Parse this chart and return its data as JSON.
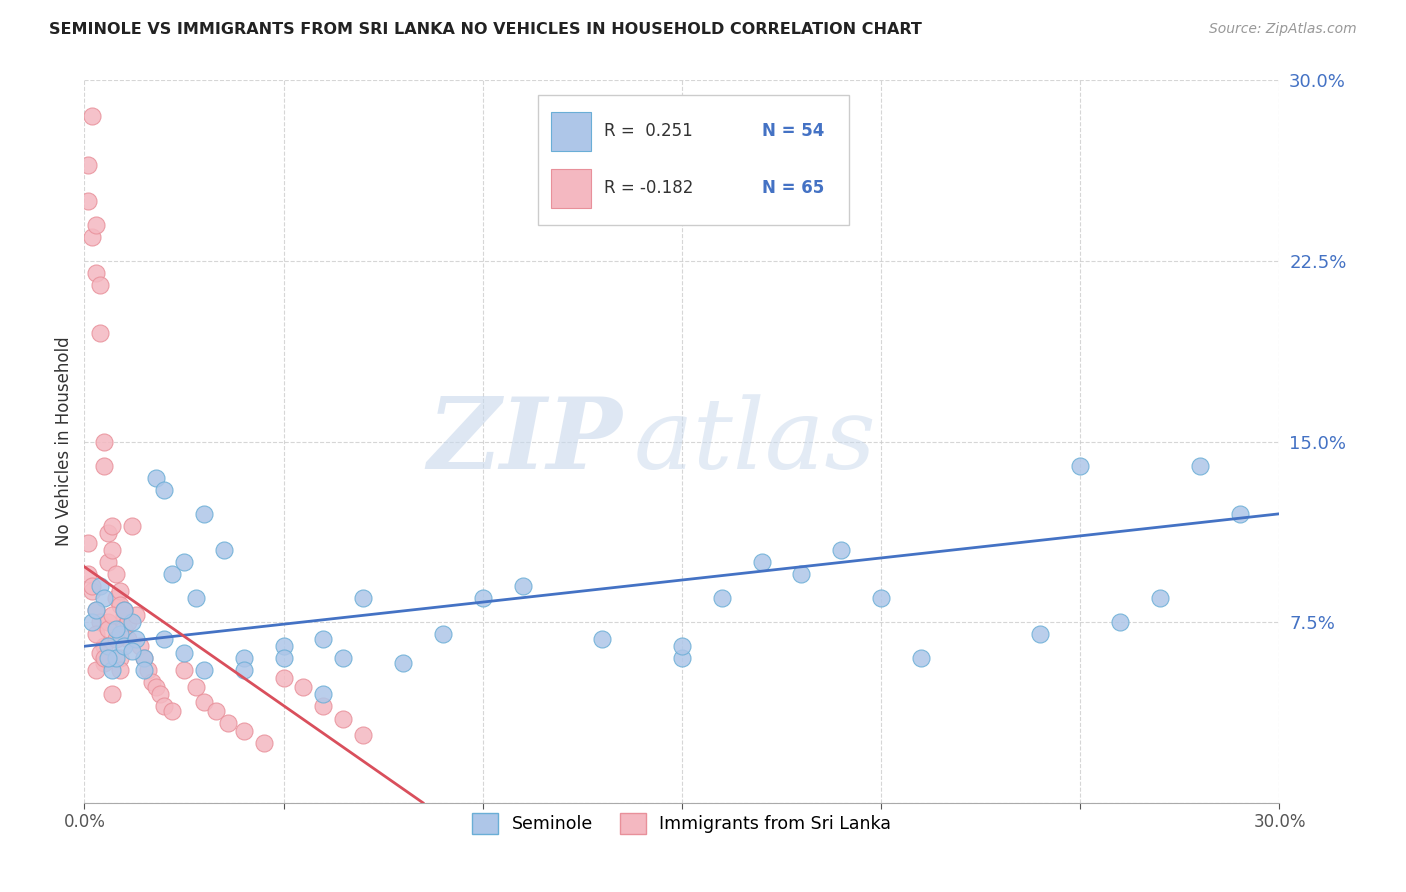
{
  "title": "SEMINOLE VS IMMIGRANTS FROM SRI LANKA NO VEHICLES IN HOUSEHOLD CORRELATION CHART",
  "source": "Source: ZipAtlas.com",
  "ylabel": "No Vehicles in Household",
  "yticks": [
    0.0,
    0.075,
    0.15,
    0.225,
    0.3
  ],
  "ytick_labels": [
    "",
    "7.5%",
    "15.0%",
    "22.5%",
    "30.0%"
  ],
  "xlim": [
    0.0,
    0.3
  ],
  "ylim": [
    0.0,
    0.3
  ],
  "watermark_zip": "ZIP",
  "watermark_atlas": "atlas",
  "seminole_color": "#aec6e8",
  "sri_lanka_color": "#f4b8c1",
  "seminole_edge": "#6aaed6",
  "sri_lanka_edge": "#e8909a",
  "line_blue": "#4472c4",
  "line_pink": "#d94f5c",
  "blue_line_x0": 0.0,
  "blue_line_y0": 0.065,
  "blue_line_x1": 0.3,
  "blue_line_y1": 0.12,
  "pink_line_x0": 0.0,
  "pink_line_y0": 0.098,
  "pink_line_x1": 0.085,
  "pink_line_y1": 0.0,
  "seminole_x": [
    0.002,
    0.004,
    0.005,
    0.006,
    0.007,
    0.008,
    0.009,
    0.01,
    0.012,
    0.013,
    0.015,
    0.018,
    0.02,
    0.022,
    0.025,
    0.028,
    0.03,
    0.035,
    0.04,
    0.05,
    0.06,
    0.065,
    0.07,
    0.08,
    0.09,
    0.1,
    0.11,
    0.13,
    0.15,
    0.16,
    0.17,
    0.18,
    0.19,
    0.2,
    0.21,
    0.24,
    0.26,
    0.27,
    0.28,
    0.29,
    0.003,
    0.006,
    0.008,
    0.01,
    0.012,
    0.015,
    0.02,
    0.025,
    0.03,
    0.04,
    0.05,
    0.06,
    0.15,
    0.25
  ],
  "seminole_y": [
    0.075,
    0.09,
    0.085,
    0.065,
    0.055,
    0.06,
    0.07,
    0.065,
    0.075,
    0.068,
    0.06,
    0.135,
    0.13,
    0.095,
    0.1,
    0.085,
    0.12,
    0.105,
    0.06,
    0.065,
    0.068,
    0.06,
    0.085,
    0.058,
    0.07,
    0.085,
    0.09,
    0.068,
    0.06,
    0.085,
    0.1,
    0.095,
    0.105,
    0.085,
    0.06,
    0.07,
    0.075,
    0.085,
    0.14,
    0.12,
    0.08,
    0.06,
    0.072,
    0.08,
    0.063,
    0.055,
    0.068,
    0.062,
    0.055,
    0.055,
    0.06,
    0.045,
    0.065,
    0.14
  ],
  "sri_lanka_x": [
    0.001,
    0.001,
    0.001,
    0.002,
    0.002,
    0.002,
    0.003,
    0.003,
    0.003,
    0.004,
    0.004,
    0.004,
    0.005,
    0.005,
    0.005,
    0.006,
    0.006,
    0.006,
    0.007,
    0.007,
    0.008,
    0.008,
    0.009,
    0.009,
    0.01,
    0.01,
    0.011,
    0.011,
    0.012,
    0.013,
    0.014,
    0.015,
    0.016,
    0.017,
    0.018,
    0.019,
    0.02,
    0.022,
    0.025,
    0.028,
    0.03,
    0.033,
    0.036,
    0.04,
    0.045,
    0.05,
    0.055,
    0.06,
    0.065,
    0.07,
    0.002,
    0.003,
    0.004,
    0.005,
    0.006,
    0.007,
    0.008,
    0.009,
    0.01,
    0.003,
    0.005,
    0.007,
    0.009,
    0.001
  ],
  "sri_lanka_y": [
    0.265,
    0.25,
    0.095,
    0.285,
    0.235,
    0.088,
    0.24,
    0.22,
    0.08,
    0.215,
    0.195,
    0.075,
    0.15,
    0.14,
    0.065,
    0.112,
    0.1,
    0.075,
    0.115,
    0.105,
    0.095,
    0.085,
    0.088,
    0.082,
    0.078,
    0.072,
    0.075,
    0.068,
    0.115,
    0.078,
    0.065,
    0.06,
    0.055,
    0.05,
    0.048,
    0.045,
    0.04,
    0.038,
    0.055,
    0.048,
    0.042,
    0.038,
    0.033,
    0.03,
    0.025,
    0.052,
    0.048,
    0.04,
    0.035,
    0.028,
    0.09,
    0.07,
    0.062,
    0.058,
    0.072,
    0.078,
    0.068,
    0.06,
    0.08,
    0.055,
    0.06,
    0.045,
    0.055,
    0.108
  ]
}
